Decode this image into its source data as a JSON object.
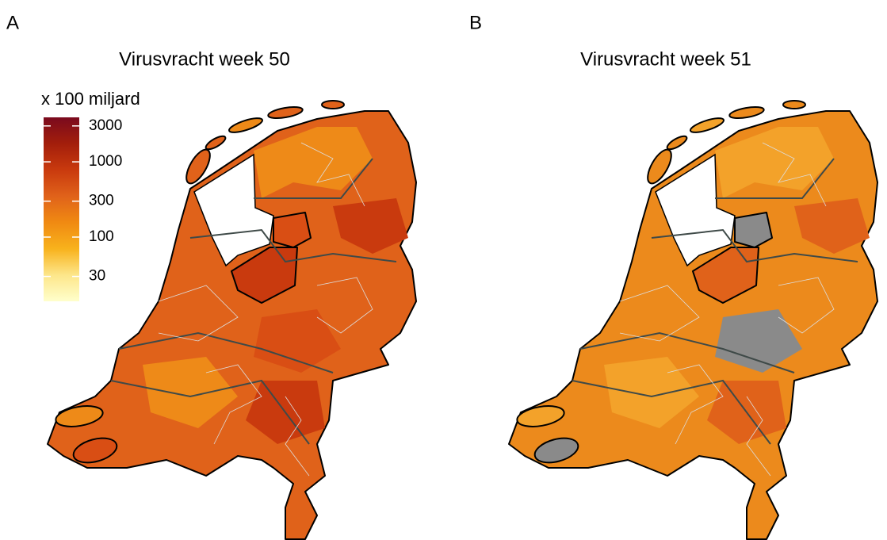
{
  "panels": [
    {
      "label": "A",
      "title": "Virusvracht week 50"
    },
    {
      "label": "B",
      "title": "Virusvracht week 51"
    }
  ],
  "legend": {
    "title": "x 100 miljard",
    "scale": "log",
    "lim": [
      14,
      3900
    ],
    "ticks": [
      3000,
      1000,
      300,
      100,
      30
    ],
    "colors": [
      "#ffffcc",
      "#fde68a",
      "#f8b21c",
      "#f08a12",
      "#e0621a",
      "#c93a0e",
      "#a31e0b",
      "#7a0a1e"
    ]
  }
}
